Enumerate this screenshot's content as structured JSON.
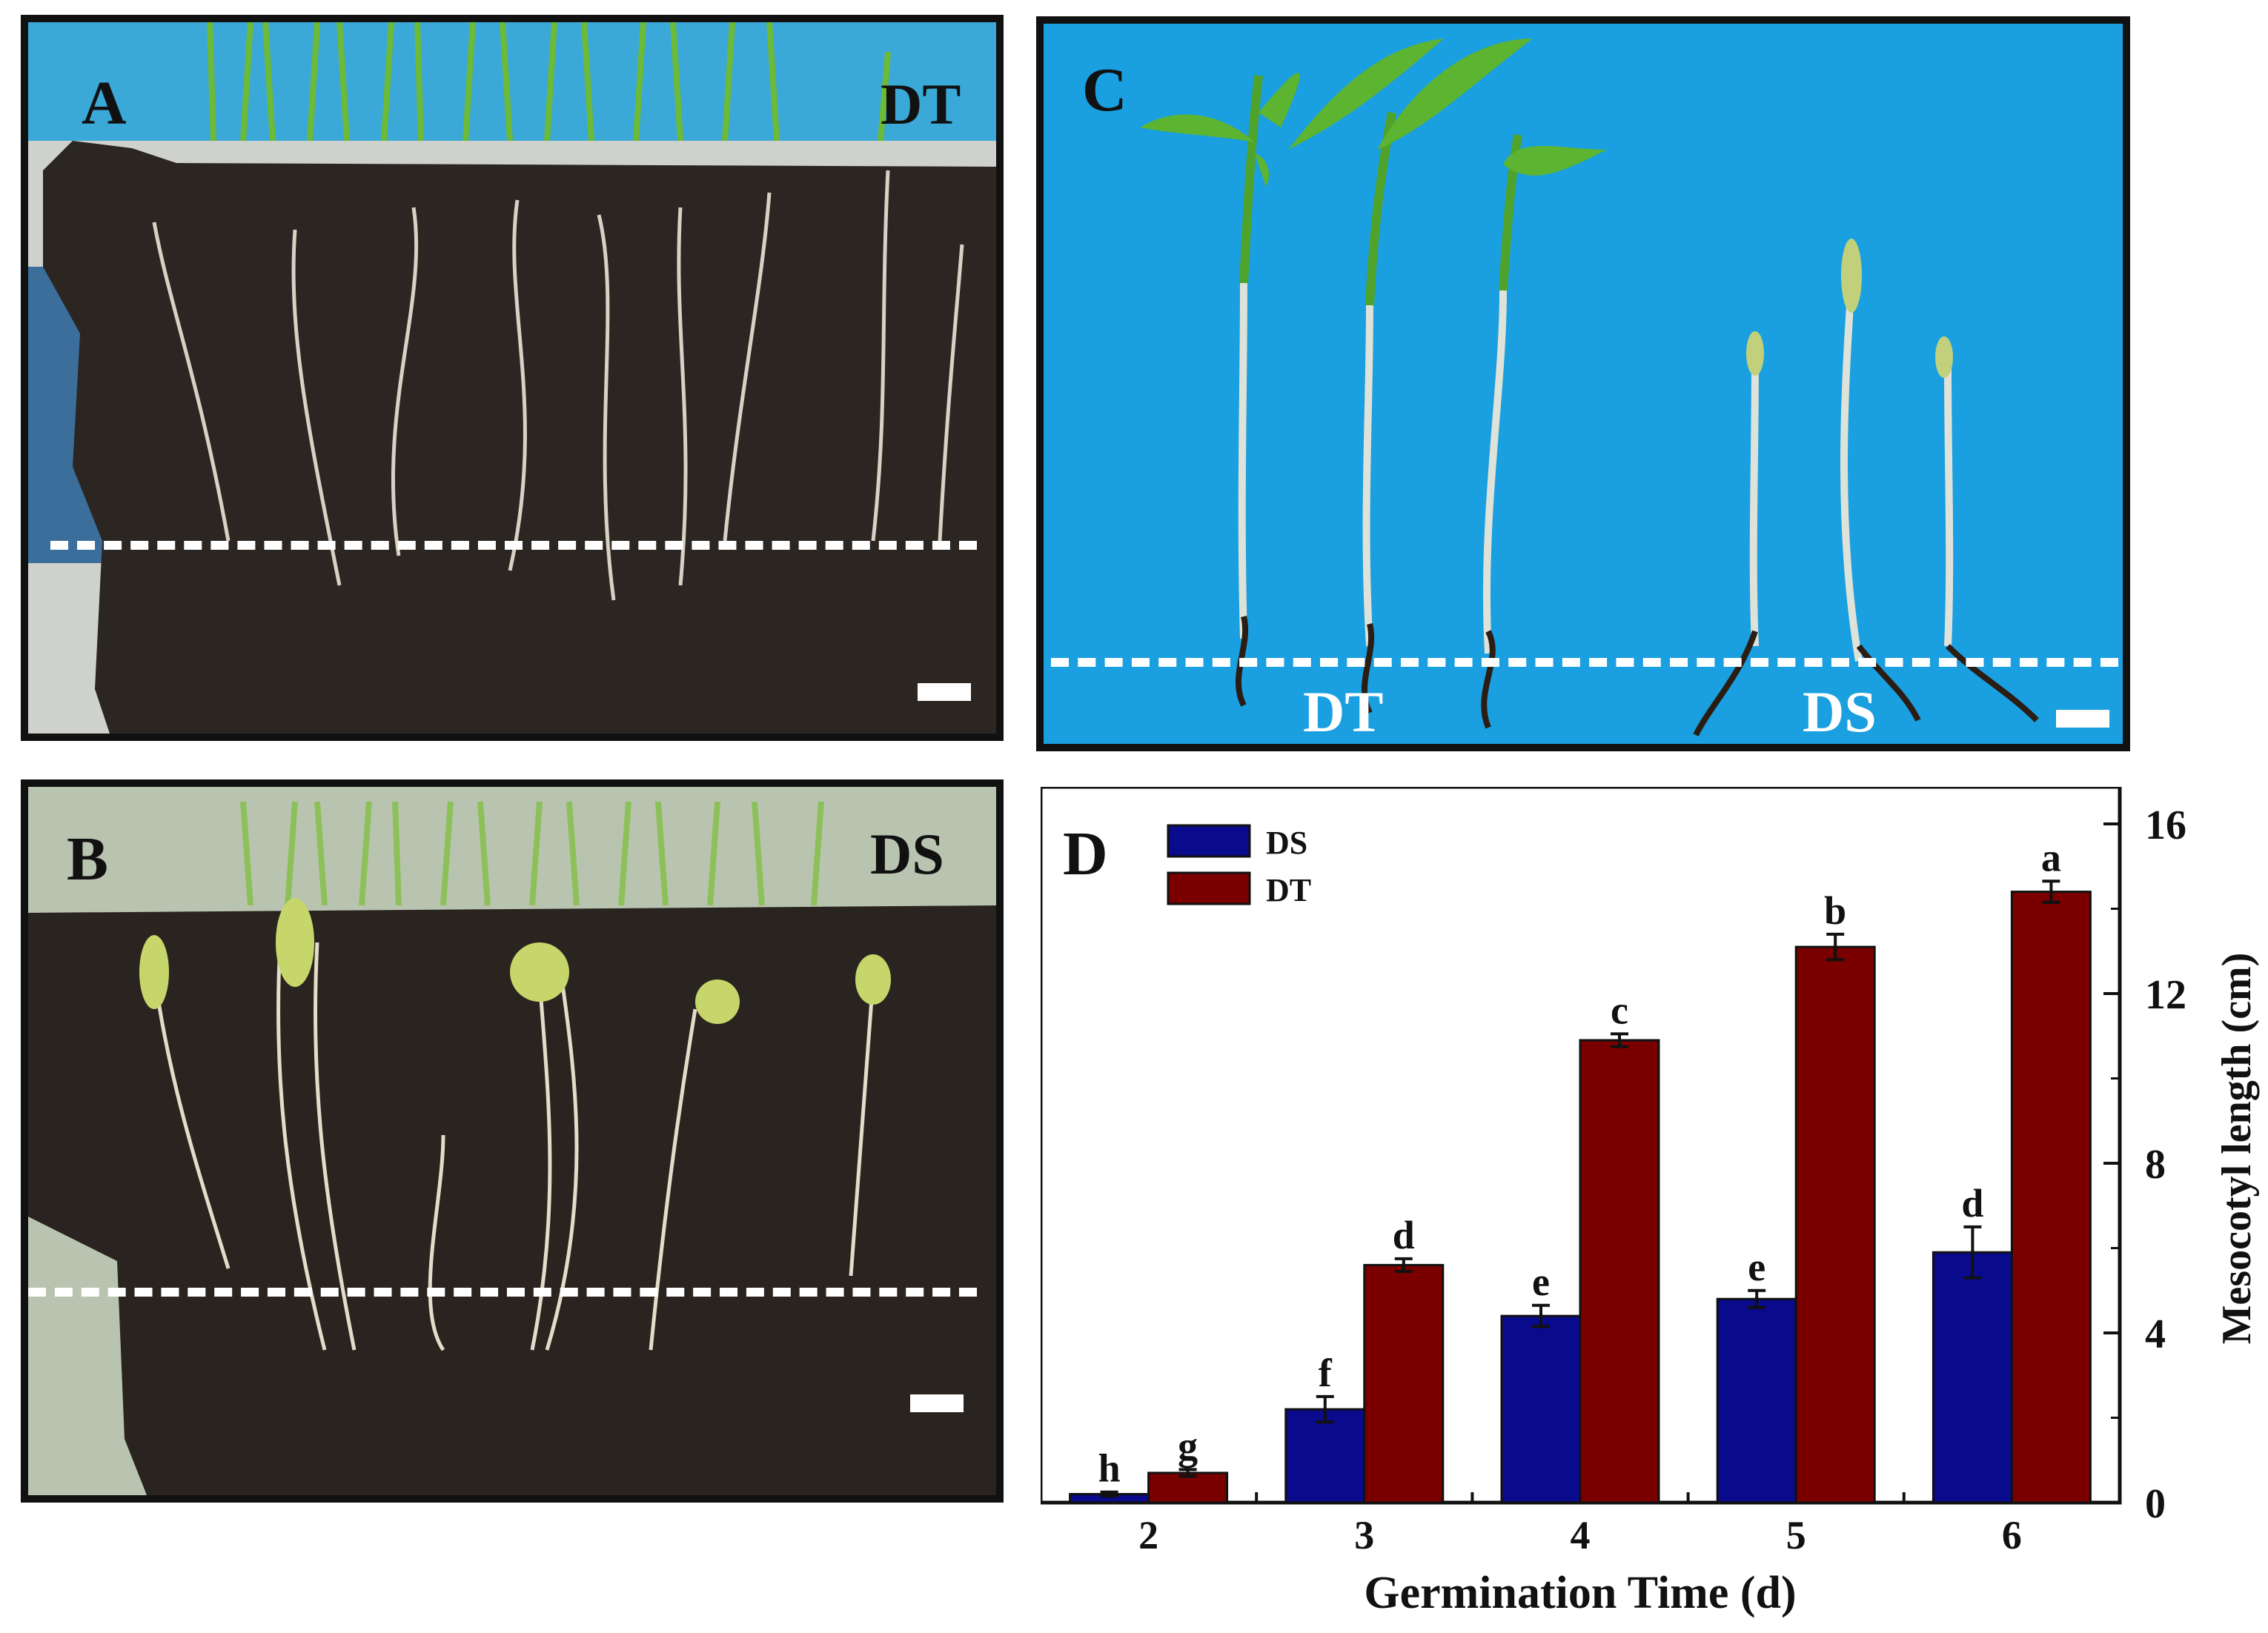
{
  "panels": {
    "a": {
      "label": "A",
      "treatment": "DT"
    },
    "b": {
      "label": "B",
      "treatment": "DS"
    },
    "c": {
      "label": "C",
      "left_label": "DT",
      "right_label": "DS"
    }
  },
  "colors": {
    "ds": "#0a0a8c",
    "dt": "#7a0000",
    "soil": "#2a2420",
    "sky": "#1a9fe0",
    "root": "#d9d2c0",
    "leaf": "#5fae2a"
  },
  "chart_data": {
    "type": "bar",
    "panel_label": "D",
    "categories": [
      "2",
      "3",
      "4",
      "5",
      "6"
    ],
    "series": [
      {
        "name": "DS",
        "values": [
          0.2,
          2.2,
          4.4,
          4.8,
          5.9
        ],
        "errors": [
          0.05,
          0.3,
          0.25,
          0.2,
          0.6
        ],
        "letters": [
          "h",
          "f",
          "e",
          "e",
          "d"
        ]
      },
      {
        "name": "DT",
        "values": [
          0.7,
          5.6,
          10.9,
          13.1,
          14.4
        ],
        "errors": [
          0.08,
          0.15,
          0.15,
          0.3,
          0.25
        ],
        "letters": [
          "g",
          "d",
          "c",
          "b",
          "a"
        ]
      }
    ],
    "xlabel": "Germination Time (d)",
    "ylabel": "Mesocotyl length (cm)",
    "ylim": [
      0,
      16
    ],
    "yticks": [
      "0",
      "4",
      "8",
      "12",
      "16"
    ],
    "legend_position": "top-left",
    "y_axis_side": "right"
  }
}
